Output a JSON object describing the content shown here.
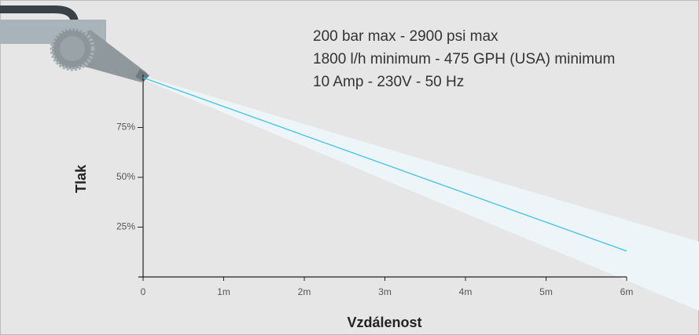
{
  "chart_data": {
    "type": "line",
    "annotations": [
      "200 bar max - 2900 psi max",
      "1800 l/h minimum - 475 GPH (USA) minimum",
      "10 Amp - 230V - 50 Hz"
    ],
    "x_label": "Vzdálenost",
    "y_label": "Tlak",
    "x": [
      0,
      6
    ],
    "values": [
      100,
      13
    ],
    "color": "#3ec3e3",
    "xlim": [
      0,
      6
    ],
    "xticks": [
      0,
      {
        "value": 1,
        "label": "1m"
      },
      {
        "value": 2,
        "label": "2m"
      },
      {
        "value": 3,
        "label": "3m"
      },
      {
        "value": 4,
        "label": "4m"
      },
      {
        "value": 5,
        "label": "5m"
      },
      {
        "value": 6,
        "label": "6m"
      }
    ],
    "ylim": [
      0,
      100
    ],
    "yticks": [
      {
        "value": 25,
        "label": "25%"
      },
      {
        "value": 50,
        "label": "50%"
      },
      {
        "value": 75,
        "label": "75%"
      }
    ]
  }
}
